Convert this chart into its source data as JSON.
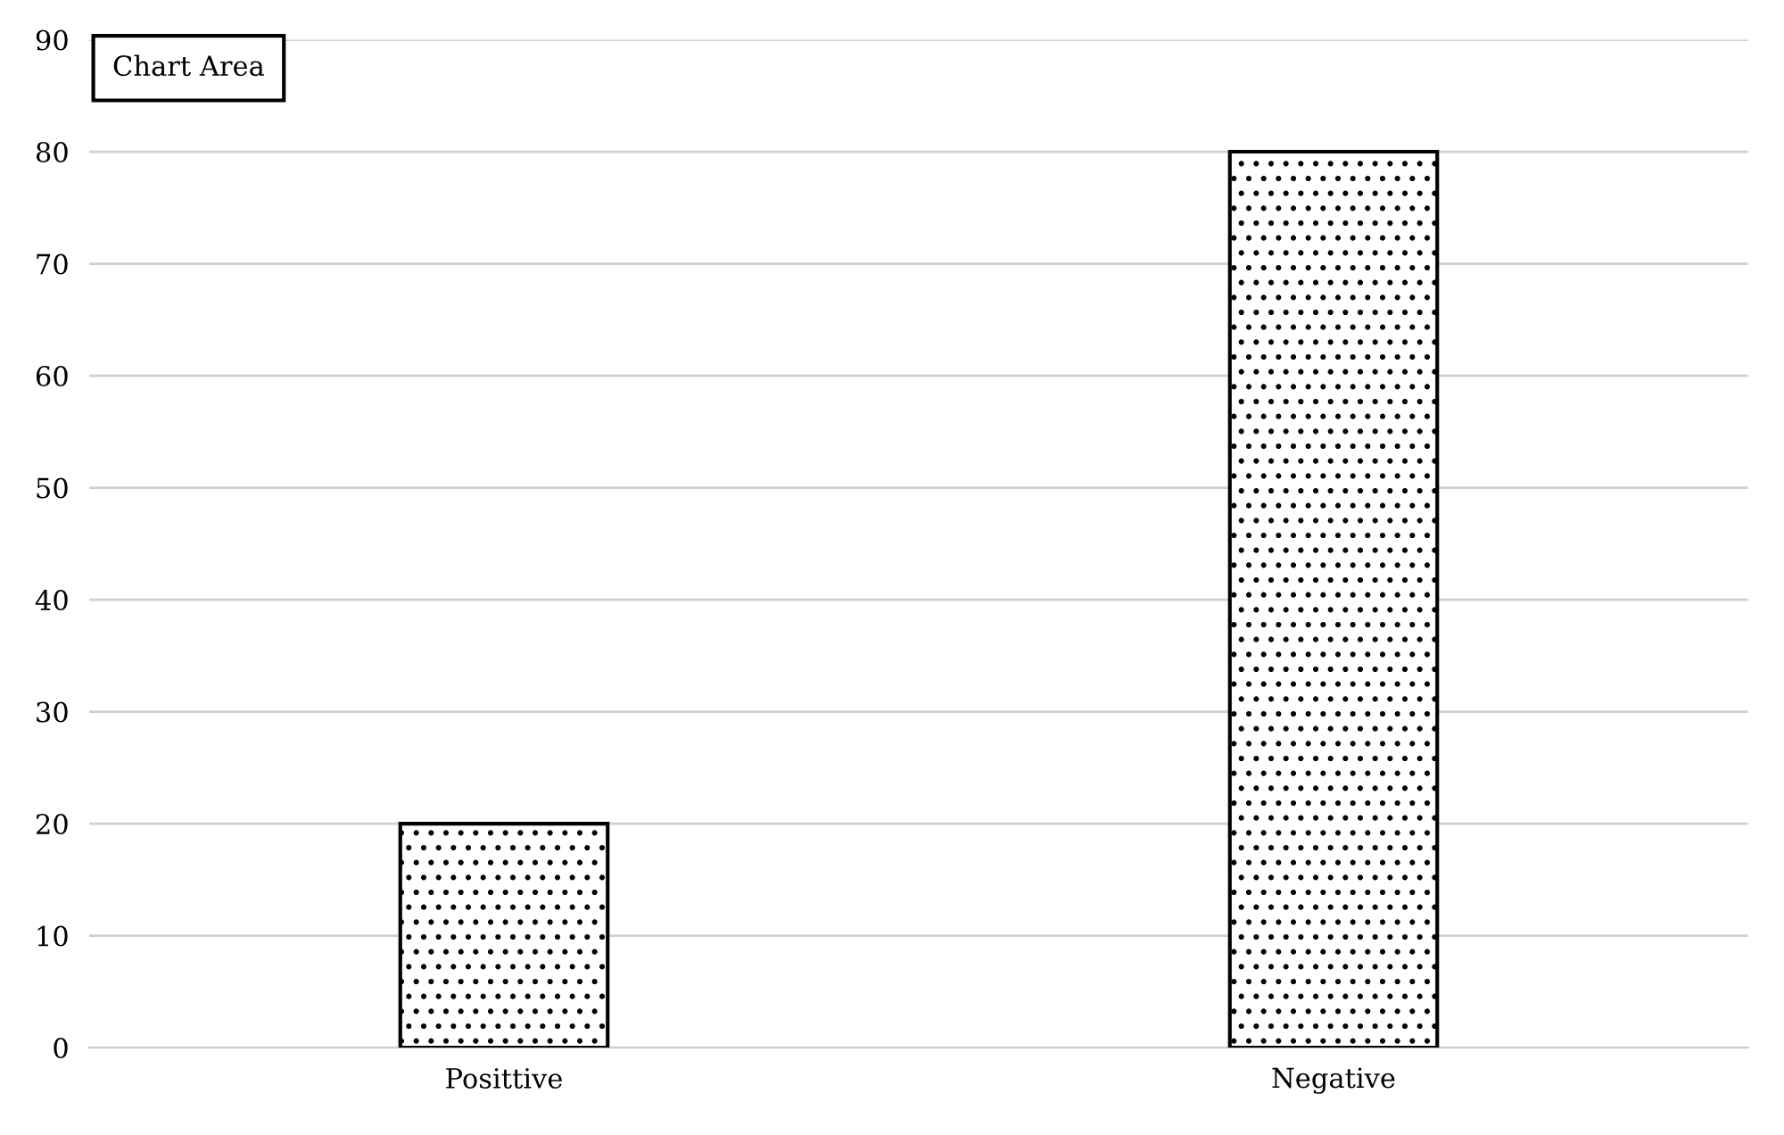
{
  "chart_data": {
    "type": "bar",
    "categories": [
      "Posittive",
      "Negative"
    ],
    "series": [
      {
        "color": "#000000",
        "values": [
          20,
          80
        ]
      }
    ],
    "ylim": [
      0,
      90
    ],
    "yticks": [
      0,
      10,
      20,
      30,
      40,
      50,
      60,
      70,
      80,
      90
    ],
    "grid": "y",
    "annotations": [
      "Chart Area"
    ]
  }
}
